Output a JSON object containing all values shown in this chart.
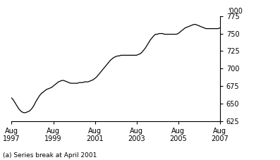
{
  "ylabel_unit": "'000",
  "footnote": "(a) Series break at April 2001",
  "ylim": [
    625,
    775
  ],
  "yticks": [
    625,
    650,
    675,
    700,
    725,
    750,
    775
  ],
  "x_tick_labels": [
    "Aug\n1997",
    "Aug\n1999",
    "Aug\n2001",
    "Aug\n2003",
    "Aug\n2005",
    "Aug\n2007"
  ],
  "line_color": "#000000",
  "line_width": 0.9,
  "background_color": "#ffffff",
  "x_tick_positions": [
    0,
    24,
    48,
    72,
    96,
    120
  ],
  "y_values": [
    658,
    655,
    651,
    647,
    643,
    640,
    638,
    637,
    637,
    638,
    639,
    641,
    644,
    648,
    653,
    657,
    661,
    664,
    666,
    668,
    670,
    671,
    672,
    673,
    675,
    677,
    679,
    681,
    682,
    683,
    683,
    682,
    681,
    680,
    679,
    679,
    679,
    679,
    679,
    680,
    680,
    680,
    681,
    681,
    681,
    682,
    683,
    684,
    686,
    688,
    691,
    694,
    697,
    700,
    703,
    706,
    709,
    712,
    714,
    716,
    717,
    718,
    718,
    719,
    719,
    719,
    719,
    719,
    719,
    719,
    719,
    719,
    719,
    720,
    721,
    723,
    726,
    729,
    733,
    737,
    741,
    744,
    747,
    749,
    749,
    750,
    750,
    750,
    749,
    749,
    749,
    749,
    749,
    749,
    749,
    749,
    750,
    752,
    754,
    756,
    758,
    759,
    760,
    761,
    762,
    763,
    763,
    762,
    761,
    760,
    759,
    758,
    757,
    757,
    757,
    757,
    757,
    757,
    757,
    757,
    758
  ]
}
